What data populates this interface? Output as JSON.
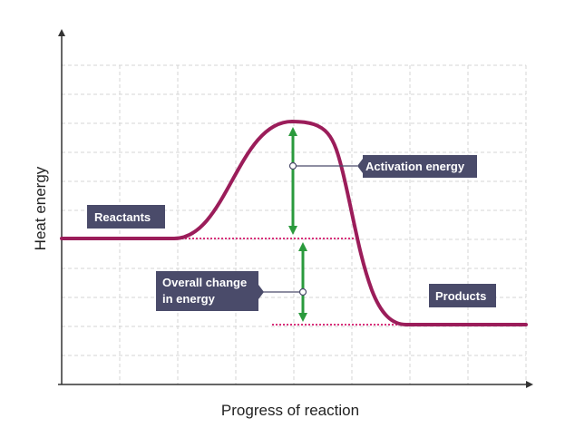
{
  "axes": {
    "x_label": "Progress of reaction",
    "y_label": "Heat energy"
  },
  "labels": {
    "reactants": "Reactants",
    "products": "Products",
    "activation_energy": "Activation energy",
    "overall_change_line1": "Overall change",
    "overall_change_line2": "in energy"
  },
  "colors": {
    "curve": "#9b1d5a",
    "arrow": "#2a9a3c",
    "dotted_reference": "#d8307a",
    "label_box": "#4a4b6a",
    "label_text": "#ffffff",
    "grid": "#d4d4d4",
    "axis": "#333333"
  }
}
